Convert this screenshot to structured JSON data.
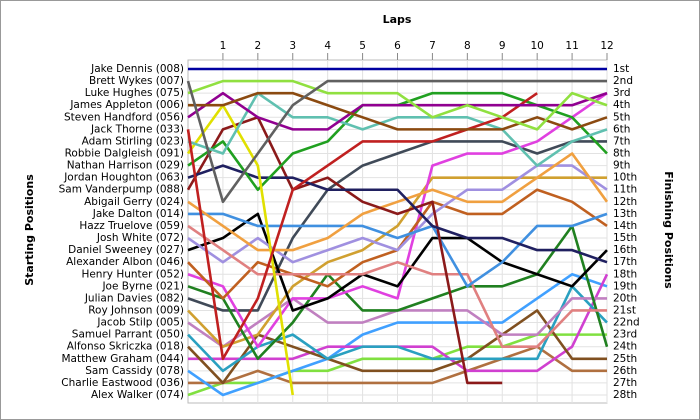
{
  "chart_data": {
    "type": "line",
    "title": "Laps",
    "y_label": "Starting Positions",
    "y2_label": "Finishing Positions",
    "x": [
      0,
      1,
      2,
      3,
      4,
      5,
      6,
      7,
      8,
      9,
      10,
      11,
      12
    ],
    "xlim": [
      0,
      12
    ],
    "xticks": [
      1,
      2,
      3,
      4,
      5,
      6,
      7,
      8,
      9,
      10,
      11,
      12
    ],
    "ylim": [
      1,
      28
    ],
    "y_inverted": true,
    "grid": true,
    "yticks": [
      {
        "value": 1,
        "label": "1st"
      },
      {
        "value": 2,
        "label": "2nd"
      },
      {
        "value": 3,
        "label": "3rd"
      },
      {
        "value": 4,
        "label": "4th"
      },
      {
        "value": 5,
        "label": "5th"
      },
      {
        "value": 6,
        "label": "6th"
      },
      {
        "value": 7,
        "label": "7th"
      },
      {
        "value": 8,
        "label": "8th"
      },
      {
        "value": 9,
        "label": "9th"
      },
      {
        "value": 10,
        "label": "10th"
      },
      {
        "value": 11,
        "label": "11th"
      },
      {
        "value": 12,
        "label": "12th"
      },
      {
        "value": 13,
        "label": "13th"
      },
      {
        "value": 14,
        "label": "14th"
      },
      {
        "value": 15,
        "label": "15th"
      },
      {
        "value": 16,
        "label": "16th"
      },
      {
        "value": 17,
        "label": "17th"
      },
      {
        "value": 18,
        "label": "18th"
      },
      {
        "value": 19,
        "label": "19th"
      },
      {
        "value": 20,
        "label": "20th"
      },
      {
        "value": 21,
        "label": "21st"
      },
      {
        "value": 22,
        "label": "22nd"
      },
      {
        "value": 23,
        "label": "23rd"
      },
      {
        "value": 24,
        "label": "24th"
      },
      {
        "value": 25,
        "label": "25th"
      },
      {
        "value": 26,
        "label": "26th"
      },
      {
        "value": 27,
        "label": "27th"
      },
      {
        "value": 28,
        "label": "28th"
      }
    ],
    "series": [
      {
        "name": "Jake Dennis (008)",
        "color": "#0000a0",
        "values": [
          1,
          1,
          1,
          1,
          1,
          1,
          1,
          1,
          1,
          1,
          1,
          1,
          1
        ]
      },
      {
        "name": "Brett Wykes (007)",
        "color": "#606060",
        "values": [
          2,
          12,
          8,
          4,
          2,
          2,
          2,
          2,
          2,
          2,
          2,
          2,
          2
        ]
      },
      {
        "name": "Luke Hughes (075)",
        "color": "#90e040",
        "values": [
          3,
          2,
          2,
          2,
          3,
          3,
          3,
          5,
          4,
          5,
          6,
          3,
          4
        ]
      },
      {
        "name": "James Appleton (006)",
        "color": "#8b4a10",
        "values": [
          4,
          4,
          3,
          3,
          4,
          5,
          6,
          6,
          6,
          6,
          5,
          6,
          5
        ]
      },
      {
        "name": "Steven Handford (056)",
        "color": "#900090",
        "values": [
          5,
          3,
          5,
          6,
          6,
          4,
          4,
          4,
          4,
          4,
          4,
          4,
          3
        ]
      },
      {
        "name": "Jack Thorne (033)",
        "color": "#c02020",
        "values": [
          6,
          25,
          20,
          11,
          9,
          7,
          7,
          7,
          6,
          5,
          3,
          null,
          null
        ]
      },
      {
        "name": "Adam Stirling (023)",
        "color": "#60c0b0",
        "values": [
          7,
          8,
          3,
          5,
          5,
          6,
          5,
          5,
          5,
          6,
          9,
          7,
          6
        ]
      },
      {
        "name": "Robbie Dalgleish (091)",
        "color": "#e0e000",
        "values": [
          8,
          4,
          9,
          28,
          null,
          null,
          null,
          null,
          null,
          null,
          null,
          null,
          null
        ]
      },
      {
        "name": "Nathan Harrison (029)",
        "color": "#20a020",
        "values": [
          9,
          7,
          11,
          8,
          7,
          4,
          4,
          3,
          3,
          3,
          4,
          5,
          8
        ]
      },
      {
        "name": "Jordan Houghton (063)",
        "color": "#202060",
        "values": [
          10,
          9,
          10,
          10,
          11,
          11,
          11,
          14,
          15,
          15,
          16,
          16,
          17
        ]
      },
      {
        "name": "Sam Vanderpump (088)",
        "color": "#8b1a1a",
        "values": [
          11,
          6,
          5,
          11,
          10,
          12,
          13,
          12,
          27,
          27,
          null,
          null,
          null
        ]
      },
      {
        "name": "Abigail Gerry (024)",
        "color": "#f0a040",
        "values": [
          12,
          14,
          16,
          16,
          15,
          13,
          12,
          11,
          12,
          12,
          10,
          8,
          12
        ]
      },
      {
        "name": "Jake Dalton (014)",
        "color": "#4090e0",
        "values": [
          13,
          13,
          14,
          14,
          14,
          14,
          15,
          14,
          19,
          17,
          14,
          14,
          13
        ]
      },
      {
        "name": "Hazz Truelove (059)",
        "color": "#e08080",
        "values": [
          14,
          16,
          18,
          18,
          18,
          18,
          17,
          18,
          18,
          24,
          24,
          21,
          21
        ]
      },
      {
        "name": "Josh White (072)",
        "color": "#a090e0",
        "values": [
          15,
          17,
          15,
          17,
          16,
          15,
          16,
          13,
          11,
          11,
          9,
          9,
          11
        ]
      },
      {
        "name": "Daniel Sweeney (027)",
        "color": "#000000",
        "values": [
          16,
          15,
          13,
          21,
          20,
          18,
          19,
          15,
          15,
          17,
          18,
          19,
          16
        ]
      },
      {
        "name": "Alexander Albon (046)",
        "color": "#c06020",
        "values": [
          17,
          20,
          17,
          18,
          19,
          17,
          16,
          12,
          13,
          13,
          11,
          12,
          14
        ]
      },
      {
        "name": "Henry Hunter (052)",
        "color": "#e040e0",
        "values": [
          18,
          19,
          24,
          20,
          20,
          19,
          20,
          9,
          8,
          8,
          7,
          5,
          3
        ]
      },
      {
        "name": "Joe Byrne (021)",
        "color": "#208020",
        "values": [
          19,
          20,
          25,
          22,
          18,
          21,
          21,
          20,
          19,
          19,
          18,
          14,
          24
        ]
      },
      {
        "name": "Julian Davies (082)",
        "color": "#404a58",
        "values": [
          20,
          21,
          21,
          15,
          11,
          9,
          8,
          7,
          7,
          7,
          8,
          7,
          7
        ]
      },
      {
        "name": "Roy Johnson (009)",
        "color": "#d0a030",
        "values": [
          21,
          24,
          23,
          19,
          17,
          16,
          14,
          10,
          10,
          10,
          10,
          10,
          10
        ]
      },
      {
        "name": "Jacob Stilp (005)",
        "color": "#c080c0",
        "values": [
          22,
          24,
          22,
          20,
          22,
          22,
          21,
          21,
          21,
          23,
          23,
          20,
          20
        ]
      },
      {
        "name": "Samuel Parrant (050)",
        "color": "#2aa0c0",
        "values": [
          23,
          26,
          24,
          23,
          25,
          24,
          24,
          25,
          25,
          25,
          25,
          19,
          22
        ]
      },
      {
        "name": "Alfonso Skriczka (018)",
        "color": "#805020",
        "values": [
          24,
          27,
          23,
          24,
          25,
          26,
          26,
          26,
          25,
          23,
          21,
          25,
          25
        ]
      },
      {
        "name": "Matthew Graham (044)",
        "color": "#d040d0",
        "values": [
          25,
          25,
          25,
          25,
          24,
          24,
          24,
          24,
          26,
          26,
          26,
          24,
          18
        ]
      },
      {
        "name": "Sam Cassidy (078)",
        "color": "#40a0ff",
        "values": [
          26,
          28,
          27,
          26,
          25,
          23,
          22,
          22,
          22,
          22,
          20,
          18,
          19
        ]
      },
      {
        "name": "Charlie Eastwood (036)",
        "color": "#b07040",
        "values": [
          27,
          27,
          26,
          27,
          27,
          27,
          27,
          27,
          26,
          25,
          24,
          26,
          26
        ]
      },
      {
        "name": "Alex Walker (074)",
        "color": "#80e040",
        "values": [
          28,
          27,
          27,
          26,
          26,
          25,
          25,
          25,
          24,
          24,
          23,
          23,
          23
        ]
      }
    ]
  }
}
